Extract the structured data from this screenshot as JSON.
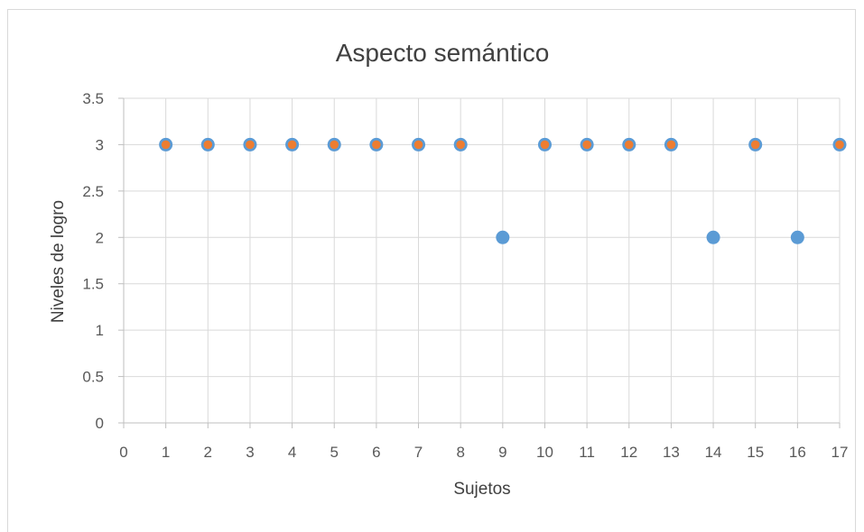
{
  "chart_data": {
    "type": "scatter",
    "title": "Aspecto semántico",
    "xlabel": "Sujetos",
    "ylabel": "Niveles de logro",
    "xlim": [
      0,
      17
    ],
    "ylim": [
      0,
      3.5
    ],
    "xticks": [
      "0",
      "1",
      "2",
      "3",
      "4",
      "5",
      "6",
      "7",
      "8",
      "9",
      "10",
      "11",
      "12",
      "13",
      "14",
      "15",
      "16",
      "17"
    ],
    "yticks": [
      "0",
      "0.5",
      "1",
      "1.5",
      "2",
      "2.5",
      "3",
      "3.5"
    ],
    "grid": true,
    "legend": "none",
    "series": [
      {
        "color": "#5b9bd5",
        "x": [
          1,
          2,
          3,
          4,
          5,
          6,
          7,
          8,
          9,
          10,
          11,
          12,
          13,
          14,
          15,
          16,
          17
        ],
        "y": [
          3,
          3,
          3,
          3,
          3,
          3,
          3,
          3,
          2,
          3,
          3,
          3,
          3,
          2,
          3,
          2,
          3
        ]
      },
      {
        "color": "#ed7d31",
        "x": [
          1,
          2,
          3,
          4,
          5,
          6,
          7,
          8,
          10,
          11,
          12,
          13,
          15,
          17
        ],
        "y": [
          3,
          3,
          3,
          3,
          3,
          3,
          3,
          3,
          3,
          3,
          3,
          3,
          3,
          3
        ]
      }
    ]
  }
}
